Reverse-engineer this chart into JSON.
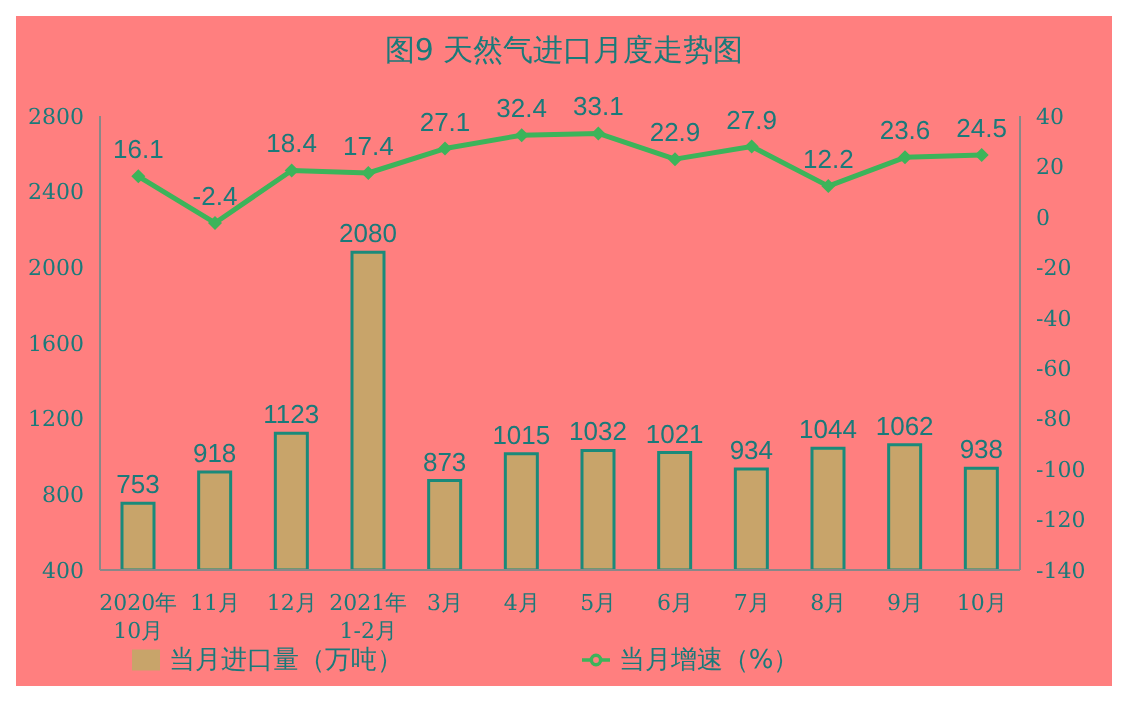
{
  "chart_data": {
    "type": "bar",
    "title": "图9  天然气进口月度走势图",
    "categories": [
      "2020年\n10月",
      "11月",
      "12月",
      "2021年\n1-2月",
      "3月",
      "4月",
      "5月",
      "6月",
      "7月",
      "8月",
      "9月",
      "10月"
    ],
    "series": [
      {
        "name": "当月进口量（万吨）",
        "color": "#c8a46a",
        "values": [
          753,
          918,
          1123,
          2080,
          873,
          1015,
          1032,
          1021,
          934,
          1044,
          1062,
          938
        ]
      },
      {
        "name": "当月增速（%）",
        "type": "line",
        "axis": "y2",
        "color": "#3cb45a",
        "marker": "diamond",
        "values": [
          16.1,
          -2.4,
          18.4,
          17.4,
          27.1,
          32.4,
          33.1,
          22.9,
          27.9,
          12.2,
          23.6,
          24.5
        ]
      }
    ],
    "ylim": [
      400,
      2800
    ],
    "yticks": [
      400,
      800,
      1200,
      1600,
      2000,
      2400,
      2800
    ],
    "y2lim": [
      -140,
      40
    ],
    "y2ticks": [
      -140,
      -120,
      -100,
      -80,
      -60,
      -40,
      -20,
      0,
      20,
      40
    ],
    "data_labels": true,
    "legend": "bottom",
    "grid": false
  }
}
